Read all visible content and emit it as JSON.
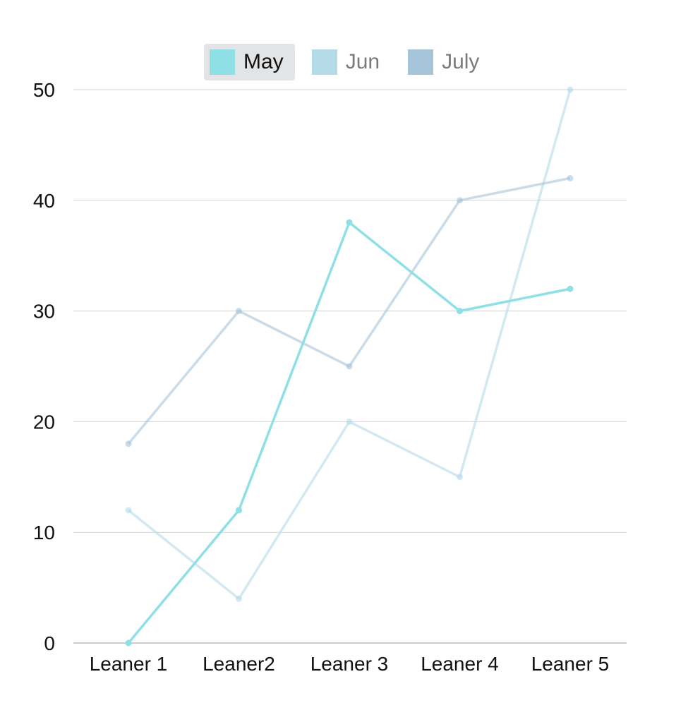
{
  "chart_data": {
    "type": "line",
    "categories": [
      "Leaner 1",
      "Leaner2",
      "Leaner 3",
      "Leaner 4",
      "Leaner 5"
    ],
    "series": [
      {
        "name": "May",
        "values": [
          0,
          12,
          38,
          30,
          32
        ],
        "color": "#8fe0e6",
        "active": true
      },
      {
        "name": "Jun",
        "values": [
          12,
          4,
          20,
          15,
          50
        ],
        "color": "#b5dbe9",
        "active": false
      },
      {
        "name": "July",
        "values": [
          18,
          30,
          25,
          40,
          42
        ],
        "color": "#a6c4d9",
        "active": false
      }
    ],
    "title": "",
    "xlabel": "",
    "ylabel": "",
    "ylim": [
      0,
      50
    ],
    "yticks": [
      "0",
      "10",
      "20",
      "30",
      "40",
      "50"
    ],
    "grid": true,
    "legend_position": "top-center"
  }
}
